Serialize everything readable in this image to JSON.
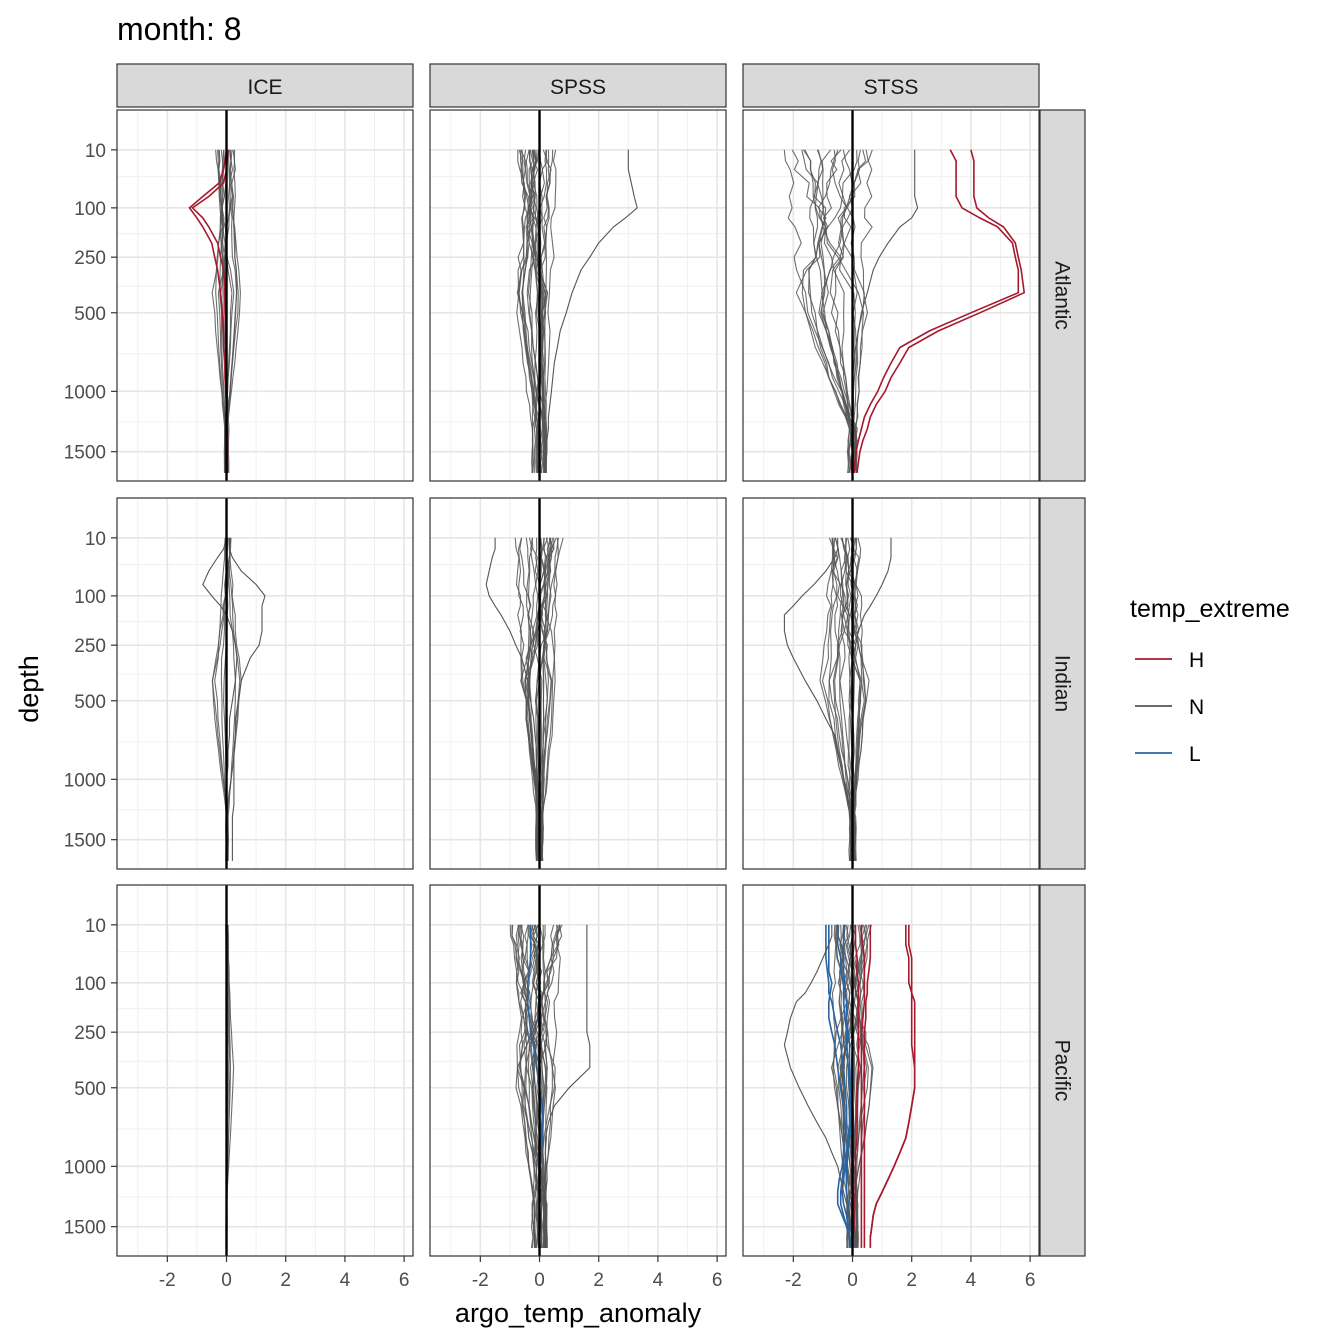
{
  "chart_data": {
    "type": "line",
    "title": "month: 8",
    "xlabel": "argo_temp_anomaly",
    "ylabel": "depth",
    "xlim": [
      -3.7,
      6.3
    ],
    "x_ticks": [
      -2,
      0,
      2,
      4,
      6
    ],
    "y_scale": "sqrt-reversed",
    "ylim": [
      0,
      1750
    ],
    "y_ticks": [
      10,
      100,
      250,
      500,
      1000,
      1500
    ],
    "grid": true,
    "legend_position": "right",
    "legend": {
      "title": "temp_extreme",
      "entries": [
        {
          "key": "H",
          "label": "H",
          "color": "#a6192e"
        },
        {
          "key": "N",
          "label": "N",
          "color": "#555555"
        },
        {
          "key": "L",
          "label": "L",
          "color": "#2a64a0"
        }
      ]
    },
    "columns": [
      "ICE",
      "SPSS",
      "STSS"
    ],
    "rows": [
      "Atlantic",
      "Indian",
      "Pacific"
    ],
    "depths": [
      10,
      20,
      30,
      50,
      75,
      100,
      125,
      150,
      200,
      250,
      300,
      400,
      500,
      600,
      700,
      800,
      900,
      1000,
      1100,
      1200,
      1300,
      1400,
      1500,
      1600,
      1700
    ],
    "panels": [
      {
        "row": "Atlantic",
        "column": "ICE",
        "n_normal": 14,
        "baseline": 0.0,
        "spread": 0.3,
        "surface_spread": 0.4,
        "mid_spread": 0.5,
        "deep_spread": 0.08,
        "series": [
          {
            "group": "H",
            "x": [
              0.0,
              -0.05,
              -0.1,
              -0.25,
              -0.8,
              -1.25,
              -1.0,
              -0.8,
              -0.5,
              -0.4,
              -0.3,
              -0.2,
              -0.15,
              -0.1,
              -0.1,
              -0.05,
              -0.05,
              -0.02,
              0.0,
              0.0,
              0.0,
              0.0,
              0.0,
              0.0,
              0.0
            ]
          },
          {
            "group": "H",
            "x": [
              0.05,
              0.02,
              0.0,
              -0.1,
              -0.6,
              -1.15,
              -0.8,
              -0.6,
              -0.3,
              -0.2,
              -0.1,
              -0.05,
              -0.05,
              -0.02,
              0.0,
              0.0,
              0.0,
              0.02,
              0.02,
              0.02,
              0.03,
              0.03,
              0.03,
              0.03,
              0.03
            ]
          }
        ]
      },
      {
        "row": "Atlantic",
        "column": "SPSS",
        "n_normal": 24,
        "baseline": -0.2,
        "spread": 0.7,
        "surface_spread": 0.7,
        "mid_spread": 0.6,
        "deep_spread": 0.25,
        "series": [
          {
            "group": "N",
            "x": [
              3.0,
              3.0,
              3.0,
              3.1,
              3.2,
              3.3,
              2.9,
              2.5,
              2.0,
              1.7,
              1.4,
              1.1,
              0.9,
              0.7,
              0.6,
              0.5,
              0.45,
              0.4,
              0.35,
              0.3,
              0.3,
              0.25,
              0.25,
              0.2,
              0.2
            ]
          }
        ]
      },
      {
        "row": "Atlantic",
        "column": "STSS",
        "n_normal": 18,
        "baseline": -0.8,
        "spread": 1.4,
        "surface_spread": 1.5,
        "mid_spread": 1.2,
        "deep_spread": 0.15,
        "series": [
          {
            "group": "H",
            "x": [
              3.3,
              3.5,
              3.5,
              3.5,
              3.5,
              3.7,
              4.3,
              4.9,
              5.4,
              5.5,
              5.6,
              5.6,
              4.0,
              2.6,
              1.6,
              1.3,
              1.05,
              0.85,
              0.6,
              0.4,
              0.3,
              0.2,
              0.12,
              0.08,
              0.05
            ]
          },
          {
            "group": "H",
            "x": [
              4.0,
              4.1,
              4.1,
              4.1,
              4.1,
              4.2,
              4.6,
              5.1,
              5.5,
              5.6,
              5.7,
              5.8,
              4.3,
              2.9,
              1.9,
              1.6,
              1.3,
              1.1,
              0.8,
              0.6,
              0.5,
              0.35,
              0.25,
              0.2,
              0.15
            ]
          },
          {
            "group": "N",
            "x": [
              2.1,
              2.1,
              2.1,
              2.1,
              2.1,
              2.2,
              2.0,
              1.6,
              1.2,
              0.9,
              0.7,
              0.5,
              0.3,
              0.2,
              0.1,
              0.05,
              0.0,
              0.0,
              0.0,
              0.0,
              0.0,
              0.0,
              0.0,
              0.0,
              0.0
            ]
          }
        ]
      },
      {
        "row": "Indian",
        "column": "ICE",
        "n_normal": 8,
        "baseline": 0.05,
        "spread": 0.25,
        "surface_spread": 0.15,
        "mid_spread": 0.6,
        "deep_spread": 0.06,
        "series": [
          {
            "group": "N",
            "x": [
              0.1,
              0.1,
              0.2,
              0.5,
              1.0,
              1.3,
              1.2,
              1.2,
              1.2,
              1.1,
              0.8,
              0.5,
              0.4,
              0.3,
              0.3,
              0.25,
              0.25,
              0.25,
              0.25,
              0.25,
              0.2,
              0.2,
              0.2,
              0.2,
              0.2
            ]
          },
          {
            "group": "N",
            "x": [
              0.0,
              -0.1,
              -0.3,
              -0.6,
              -0.8,
              -0.5,
              -0.2,
              0.0,
              0.2,
              0.3,
              0.35,
              0.3,
              0.2,
              0.1,
              0.1,
              0.05,
              0.05,
              0.0,
              0.0,
              0.0,
              0.0,
              0.0,
              0.0,
              0.0,
              0.0
            ]
          }
        ]
      },
      {
        "row": "Indian",
        "column": "SPSS",
        "n_normal": 24,
        "baseline": 0.0,
        "spread": 0.6,
        "surface_spread": 0.8,
        "mid_spread": 0.6,
        "deep_spread": 0.12,
        "series": [
          {
            "group": "N",
            "x": [
              -1.5,
              -1.5,
              -1.6,
              -1.7,
              -1.8,
              -1.7,
              -1.5,
              -1.3,
              -1.0,
              -0.8,
              -0.6,
              -0.4,
              -0.3,
              -0.2,
              -0.15,
              -0.1,
              -0.1,
              -0.1,
              -0.1,
              -0.1,
              -0.1,
              -0.1,
              -0.1,
              -0.1,
              -0.1
            ]
          }
        ]
      },
      {
        "row": "Indian",
        "column": "STSS",
        "n_normal": 20,
        "baseline": -0.3,
        "spread": 0.8,
        "surface_spread": 0.6,
        "mid_spread": 0.8,
        "deep_spread": 0.1,
        "series": [
          {
            "group": "N",
            "x": [
              1.3,
              1.3,
              1.3,
              1.2,
              1.0,
              0.8,
              0.6,
              0.4,
              0.2,
              0.1,
              0.0,
              0.0,
              0.0,
              0.0,
              0.0,
              0.0,
              0.0,
              0.0,
              0.0,
              0.0,
              0.0,
              0.0,
              0.0,
              0.0,
              0.0
            ]
          },
          {
            "group": "N",
            "x": [
              -0.5,
              -0.5,
              -0.6,
              -0.9,
              -1.3,
              -1.7,
              -2.0,
              -2.3,
              -2.3,
              -2.2,
              -2.0,
              -1.6,
              -1.2,
              -0.9,
              -0.6,
              -0.5,
              -0.4,
              -0.3,
              -0.2,
              -0.1,
              -0.1,
              0.0,
              0.0,
              0.0,
              0.0
            ]
          }
        ]
      },
      {
        "row": "Pacific",
        "column": "ICE",
        "n_normal": 5,
        "baseline": 0.0,
        "spread": 0.06,
        "surface_spread": 0.08,
        "mid_spread": 0.25,
        "deep_spread": 0.02,
        "series": []
      },
      {
        "row": "Pacific",
        "column": "SPSS",
        "n_normal": 30,
        "baseline": -0.1,
        "spread": 0.8,
        "surface_spread": 0.9,
        "mid_spread": 0.7,
        "deep_spread": 0.25,
        "series": [
          {
            "group": "L",
            "x": [
              -0.3,
              -0.3,
              -0.3,
              -0.3,
              -0.35,
              -0.4,
              -0.4,
              -0.4,
              -0.35,
              -0.3,
              -0.2,
              -0.1,
              0.0,
              0.1,
              0.1,
              0.1,
              0.05,
              0.0,
              0.0,
              0.0,
              0.0,
              0.0,
              0.0,
              0.0,
              0.0
            ]
          },
          {
            "group": "N",
            "x": [
              1.6,
              1.6,
              1.6,
              1.6,
              1.6,
              1.6,
              1.6,
              1.6,
              1.6,
              1.6,
              1.7,
              1.7,
              1.0,
              0.5,
              0.3,
              0.2,
              0.2,
              0.2,
              0.2,
              0.2,
              0.2,
              0.2,
              0.2,
              0.2,
              0.2
            ]
          }
        ]
      },
      {
        "row": "Pacific",
        "column": "STSS",
        "n_normal": 24,
        "baseline": 0.0,
        "spread": 0.6,
        "surface_spread": 0.7,
        "mid_spread": 0.8,
        "deep_spread": 0.2,
        "series": [
          {
            "group": "H",
            "x": [
              1.8,
              1.8,
              1.8,
              1.9,
              1.9,
              1.9,
              2.0,
              2.0,
              2.0,
              2.0,
              2.0,
              2.1,
              2.1,
              2.0,
              1.9,
              1.8,
              1.6,
              1.4,
              1.2,
              1.0,
              0.8,
              0.7,
              0.65,
              0.6,
              0.6
            ]
          },
          {
            "group": "H",
            "x": [
              1.9,
              1.9,
              1.9,
              2.0,
              2.0,
              2.0,
              2.0,
              2.1,
              2.1,
              2.1,
              2.1,
              2.1,
              2.1,
              2.0,
              1.9,
              1.8,
              1.6,
              1.4,
              1.2,
              1.0,
              0.8,
              0.7,
              0.65,
              0.6,
              0.6
            ]
          },
          {
            "group": "H",
            "x": [
              0.3,
              0.3,
              0.35,
              0.4,
              0.4,
              0.4,
              0.4,
              0.4,
              0.35,
              0.3,
              0.3,
              0.3,
              0.3,
              0.3,
              0.3,
              0.3,
              0.3,
              0.3,
              0.3,
              0.3,
              0.3,
              0.3,
              0.3,
              0.3,
              0.3
            ]
          },
          {
            "group": "H",
            "x": [
              0.6,
              0.6,
              0.6,
              0.6,
              0.55,
              0.5,
              0.5,
              0.45,
              0.45,
              0.4,
              0.4,
              0.4,
              0.4,
              0.4,
              0.4,
              0.4,
              0.4,
              0.4,
              0.4,
              0.4,
              0.4,
              0.4,
              0.4,
              0.4,
              0.4
            ]
          },
          {
            "group": "H",
            "x": [
              0.1,
              0.1,
              0.1,
              0.15,
              0.15,
              0.2,
              0.2,
              0.2,
              0.2,
              0.2,
              0.2,
              0.2,
              0.15,
              0.15,
              0.15,
              0.15,
              0.1,
              0.1,
              0.1,
              0.1,
              0.05,
              0.05,
              0.05,
              0.0,
              0.0
            ]
          },
          {
            "group": "L",
            "x": [
              -0.8,
              -0.8,
              -0.8,
              -0.8,
              -0.8,
              -0.7,
              -0.75,
              -0.8,
              -0.8,
              -0.7,
              -0.6,
              -0.5,
              -0.4,
              -0.3,
              -0.3,
              -0.3,
              -0.3,
              -0.3,
              -0.35,
              -0.4,
              -0.4,
              -0.3,
              -0.2,
              -0.1,
              0.0
            ]
          },
          {
            "group": "L",
            "x": [
              -0.9,
              -0.9,
              -0.9,
              -0.9,
              -0.85,
              -0.8,
              -0.8,
              -0.7,
              -0.6,
              -0.5,
              -0.4,
              -0.3,
              -0.25,
              -0.2,
              -0.2,
              -0.25,
              -0.3,
              -0.35,
              -0.45,
              -0.5,
              -0.5,
              -0.35,
              -0.2,
              -0.1,
              -0.05
            ]
          },
          {
            "group": "L",
            "x": [
              -0.5,
              -0.5,
              -0.5,
              -0.4,
              -0.4,
              -0.3,
              -0.3,
              -0.3,
              -0.25,
              -0.2,
              -0.2,
              -0.15,
              -0.1,
              -0.1,
              -0.1,
              -0.15,
              -0.2,
              -0.25,
              -0.3,
              -0.35,
              -0.3,
              -0.2,
              -0.15,
              -0.1,
              -0.05
            ]
          },
          {
            "group": "L",
            "x": [
              -0.3,
              -0.3,
              -0.3,
              -0.3,
              -0.3,
              -0.25,
              -0.25,
              -0.2,
              -0.2,
              -0.15,
              -0.1,
              -0.1,
              -0.05,
              -0.05,
              -0.05,
              -0.1,
              -0.15,
              -0.2,
              -0.2,
              -0.2,
              -0.15,
              -0.1,
              -0.05,
              0.0,
              0.0
            ]
          },
          {
            "group": "N",
            "x": [
              -0.7,
              -0.7,
              -0.8,
              -1.0,
              -1.2,
              -1.4,
              -1.6,
              -1.9,
              -2.1,
              -2.2,
              -2.3,
              -2.1,
              -1.8,
              -1.5,
              -1.2,
              -0.9,
              -0.7,
              -0.5,
              -0.4,
              -0.3,
              -0.2,
              -0.1,
              -0.1,
              0.0,
              0.0
            ]
          }
        ]
      }
    ]
  }
}
